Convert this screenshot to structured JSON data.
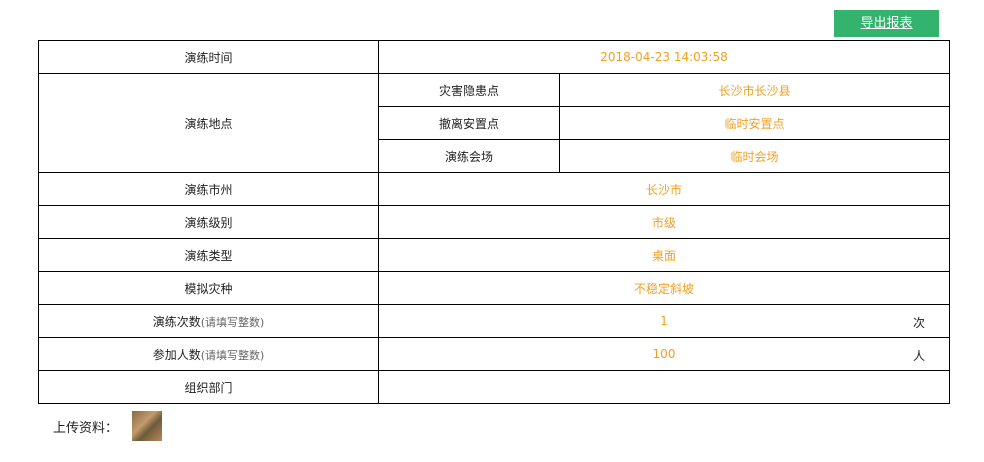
{
  "toolbar": {
    "export_label": "导出报表"
  },
  "colors": {
    "accent": "#34b36f",
    "value": "#f0a020"
  },
  "rows": {
    "time": {
      "label": "演练时间",
      "value": "2018-04-23 14:03:58"
    },
    "location": {
      "label": "演练地点",
      "subs": [
        {
          "label": "灾害隐患点",
          "value": "长沙市长沙县"
        },
        {
          "label": "撤离安置点",
          "value": "临时安置点"
        },
        {
          "label": "演练会场",
          "value": "临时会场"
        }
      ]
    },
    "city": {
      "label": "演练市州",
      "value": "长沙市"
    },
    "level": {
      "label": "演练级别",
      "value": "市级"
    },
    "type": {
      "label": "演练类型",
      "value": "桌面"
    },
    "disaster": {
      "label": "模拟灾种",
      "value": "不稳定斜坡"
    },
    "count": {
      "label": "演练次数",
      "hint": "(请填写整数)",
      "value": "1",
      "unit": "次"
    },
    "people": {
      "label": "参加人数",
      "hint": "(请填写整数)",
      "value": "100",
      "unit": "人"
    },
    "org": {
      "label": "组织部门",
      "value": ""
    }
  },
  "upload": {
    "label": "上传资料："
  }
}
